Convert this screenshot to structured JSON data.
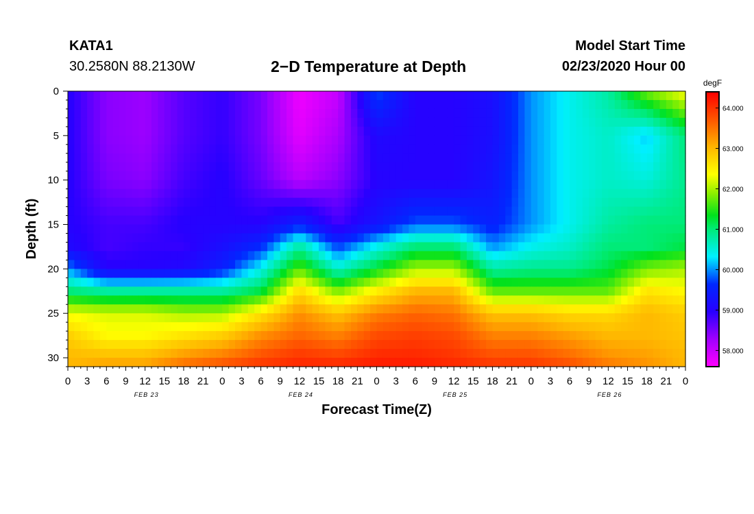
{
  "header": {
    "station": "KATA1",
    "coords": "30.2580N 88.2130W",
    "title": "2−D Temperature at Depth",
    "model_start_label": "Model Start Time",
    "model_start_value": "02/23/2020 Hour 00"
  },
  "chart_data": {
    "type": "heatmap",
    "title": "2−D Temperature at Depth",
    "xlabel": "Forecast Time(Z)",
    "ylabel": "Depth (ft)",
    "x_tick_labels": [
      "0",
      "3",
      "6",
      "9",
      "12",
      "15",
      "18",
      "21",
      "0",
      "3",
      "6",
      "9",
      "12",
      "15",
      "18",
      "21",
      "0",
      "3",
      "6",
      "9",
      "12",
      "15",
      "18",
      "21",
      "0",
      "3",
      "6",
      "9",
      "12",
      "15",
      "18",
      "21",
      "0"
    ],
    "x_range_hours": [
      0,
      96
    ],
    "date_labels": [
      {
        "label": "FEB 23",
        "hour": 12
      },
      {
        "label": "FEB 24",
        "hour": 36
      },
      {
        "label": "FEB 25",
        "hour": 60
      },
      {
        "label": "FEB 26",
        "hour": 84
      }
    ],
    "y_ticks": [
      0,
      5,
      10,
      15,
      20,
      25,
      30
    ],
    "ylim": [
      0,
      31
    ],
    "y_inverted": true,
    "colorbar": {
      "unit": "degF",
      "min": 57.6,
      "max": 64.4,
      "tick_values": [
        64.0,
        63.0,
        62.0,
        61.0,
        60.0,
        59.0,
        58.0
      ],
      "tick_labels": [
        "64.000",
        "63.000",
        "62.000",
        "61.000",
        "60.000",
        "59.000",
        "58.000"
      ]
    },
    "time_hours": [
      0,
      6,
      12,
      18,
      24,
      30,
      36,
      42,
      48,
      54,
      60,
      66,
      72,
      78,
      84,
      90,
      96
    ],
    "depth_ft": [
      0,
      5,
      10,
      15,
      17.5,
      20,
      22.5,
      25,
      27.5,
      30,
      31
    ],
    "temperature_degF": [
      [
        59.0,
        58.4,
        58.3,
        58.7,
        58.9,
        58.5,
        57.7,
        58.0,
        59.8,
        59.0,
        59.0,
        59.2,
        60.0,
        60.4,
        60.8,
        61.8,
        62.4
      ],
      [
        59.0,
        58.4,
        58.3,
        58.7,
        58.9,
        58.5,
        57.8,
        58.2,
        59.1,
        59.0,
        59.0,
        59.2,
        60.0,
        60.4,
        60.6,
        60.2,
        61.0
      ],
      [
        59.0,
        58.5,
        58.4,
        58.8,
        59.0,
        58.6,
        58.1,
        58.4,
        59.0,
        59.0,
        59.0,
        59.3,
        60.0,
        60.4,
        60.6,
        60.5,
        60.9
      ],
      [
        59.0,
        58.8,
        58.8,
        59.0,
        59.0,
        59.0,
        59.5,
        58.8,
        59.3,
        59.8,
        59.8,
        59.5,
        60.0,
        60.4,
        60.8,
        61.0,
        61.0
      ],
      [
        59.1,
        58.8,
        58.9,
        58.9,
        59.2,
        59.6,
        60.8,
        59.7,
        60.4,
        61.0,
        61.0,
        60.0,
        60.4,
        60.6,
        61.0,
        61.0,
        61.2
      ],
      [
        60.0,
        59.0,
        59.0,
        59.1,
        59.5,
        60.4,
        61.7,
        60.6,
        61.3,
        62.0,
        62.0,
        60.8,
        60.9,
        60.9,
        61.2,
        61.8,
        62.0
      ],
      [
        61.0,
        60.8,
        60.8,
        60.8,
        60.8,
        61.2,
        62.7,
        61.8,
        62.5,
        63.0,
        63.0,
        61.7,
        61.7,
        61.7,
        61.7,
        62.6,
        62.4
      ],
      [
        62.3,
        62.2,
        62.2,
        62.0,
        62.0,
        62.6,
        63.3,
        62.9,
        63.4,
        63.6,
        63.5,
        62.9,
        62.9,
        62.7,
        62.7,
        63.0,
        62.8
      ],
      [
        62.8,
        62.4,
        62.4,
        62.6,
        62.8,
        63.3,
        63.6,
        63.4,
        63.8,
        63.9,
        63.8,
        63.4,
        63.4,
        63.2,
        63.0,
        63.0,
        62.9
      ],
      [
        63.0,
        63.0,
        63.0,
        63.3,
        63.5,
        63.8,
        64.0,
        63.9,
        64.1,
        64.1,
        64.0,
        63.8,
        63.8,
        63.6,
        63.3,
        63.2,
        63.0
      ],
      [
        63.0,
        63.2,
        63.2,
        63.6,
        63.8,
        64.0,
        64.1,
        64.1,
        64.2,
        64.2,
        64.1,
        64.0,
        64.0,
        63.8,
        63.5,
        63.3,
        63.0
      ]
    ]
  }
}
